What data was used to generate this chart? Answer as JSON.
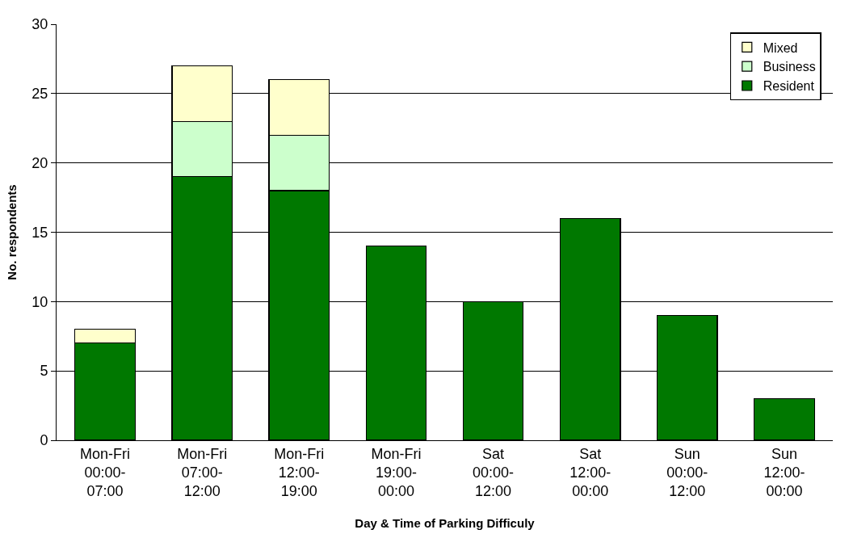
{
  "chart_data": {
    "type": "bar",
    "stacked": true,
    "xlabel": "Day & Time of Parking Difficuly",
    "ylabel": "No. respondents",
    "categories": [
      "Mon-Fri\n00:00-\n07:00",
      "Mon-Fri\n07:00-\n12:00",
      "Mon-Fri\n12:00-\n19:00",
      "Mon-Fri\n19:00-\n00:00",
      "Sat\n00:00-\n12:00",
      "Sat\n12:00-\n00:00",
      "Sun\n00:00-\n12:00",
      "Sun\n12:00-\n00:00"
    ],
    "series": [
      {
        "name": "Resident",
        "color": "#007800",
        "values": [
          7,
          19,
          18,
          14,
          10,
          16,
          9,
          3
        ]
      },
      {
        "name": "Business",
        "color": "#ccffcc",
        "values": [
          null,
          4,
          4,
          null,
          null,
          null,
          null,
          null
        ]
      },
      {
        "name": "Mixed",
        "color": "#ffffcc",
        "values": [
          1,
          4,
          4,
          null,
          null,
          null,
          null,
          null
        ]
      }
    ],
    "ylim": [
      0,
      30
    ],
    "yticks": [
      0,
      5,
      10,
      15,
      20,
      25,
      30
    ],
    "grid": "y",
    "legend": "top right"
  }
}
